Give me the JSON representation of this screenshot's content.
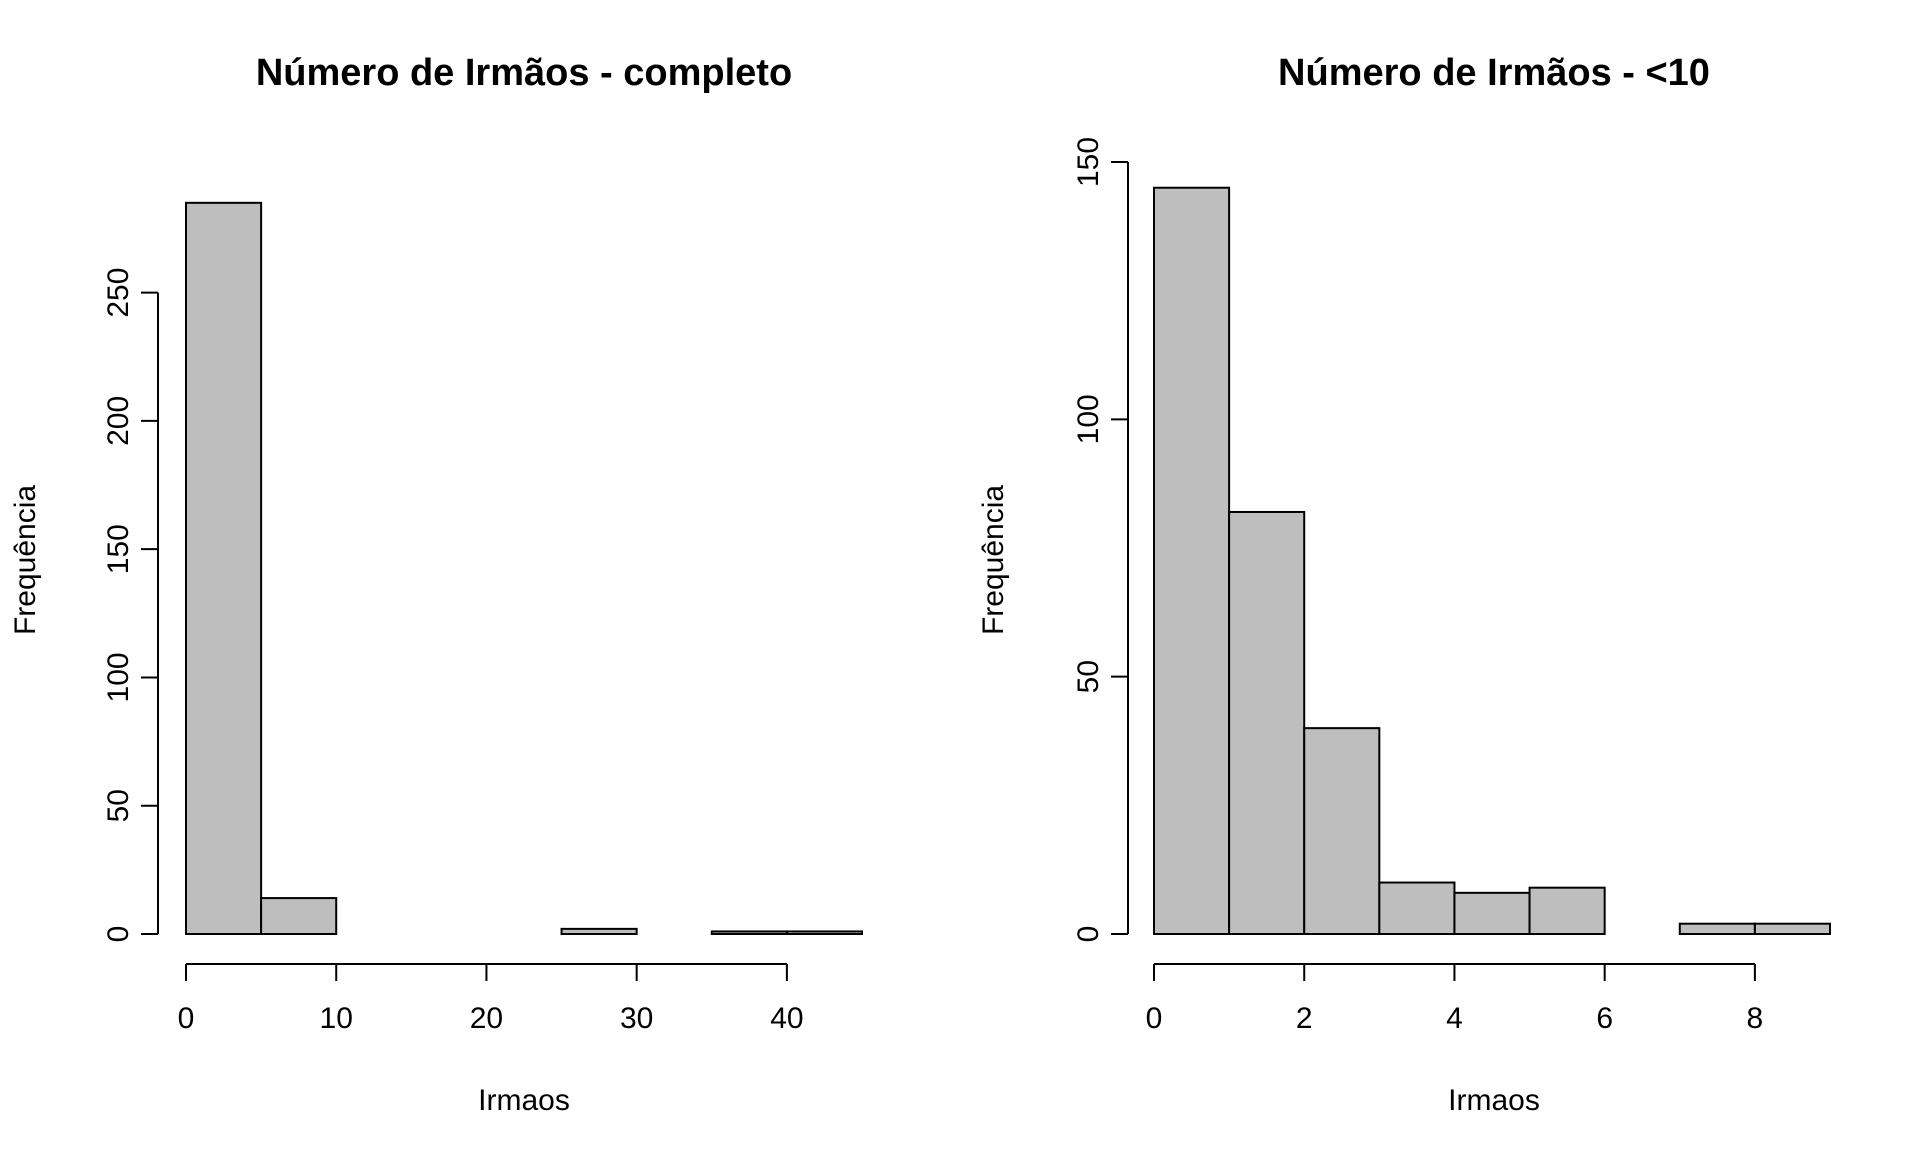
{
  "chart_data": [
    {
      "type": "bar",
      "title": "Número de Irmãos - completo",
      "xlabel": "Irmaos",
      "ylabel": "Frequência",
      "bins": [
        [
          0,
          5
        ],
        [
          5,
          10
        ],
        [
          10,
          15
        ],
        [
          15,
          20
        ],
        [
          20,
          25
        ],
        [
          25,
          30
        ],
        [
          30,
          35
        ],
        [
          35,
          40
        ],
        [
          40,
          45
        ]
      ],
      "values": [
        285,
        14,
        0,
        0,
        0,
        2,
        0,
        1,
        1
      ],
      "xlim": [
        0,
        45
      ],
      "ylim": [
        0,
        290
      ],
      "xticks": [
        0,
        10,
        20,
        30,
        40
      ],
      "yticks": [
        0,
        50,
        100,
        150,
        200,
        250
      ],
      "grid": false,
      "bar_color": "#bebebe"
    },
    {
      "type": "bar",
      "title": "Número de Irmãos - <10",
      "xlabel": "Irmaos",
      "ylabel": "Frequência",
      "bins": [
        [
          0,
          1
        ],
        [
          1,
          2
        ],
        [
          2,
          3
        ],
        [
          3,
          4
        ],
        [
          4,
          5
        ],
        [
          5,
          6
        ],
        [
          6,
          7
        ],
        [
          7,
          8
        ],
        [
          8,
          9
        ]
      ],
      "values": [
        145,
        82,
        40,
        10,
        8,
        9,
        0,
        2,
        2
      ],
      "xlim": [
        0,
        9
      ],
      "ylim": [
        0,
        150
      ],
      "xticks": [
        0,
        2,
        4,
        6,
        8
      ],
      "yticks": [
        0,
        50,
        100,
        150
      ],
      "grid": false,
      "bar_color": "#bebebe"
    }
  ]
}
